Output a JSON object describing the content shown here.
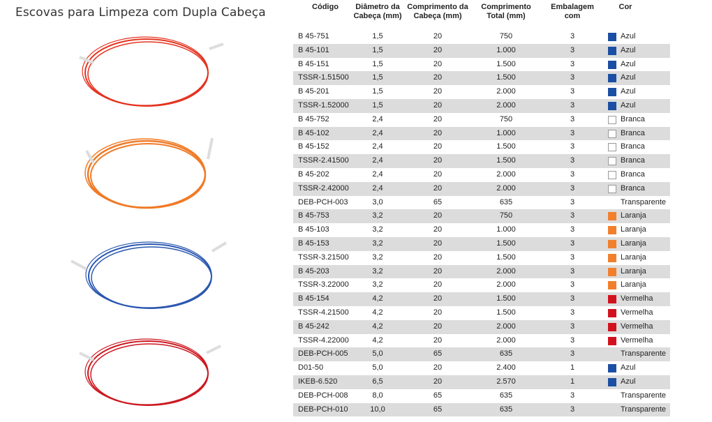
{
  "title": "Escovas para Limpeza com Dupla Cabeça",
  "table": {
    "headers": {
      "code": "Código",
      "diameter": [
        "Diâmetro da",
        "Cabeça (mm)"
      ],
      "head_length": [
        "Comprimento da",
        "Cabeça (mm)"
      ],
      "total_length": [
        "Comprimento",
        "Total (mm)"
      ],
      "package": [
        "Embalagem",
        "com"
      ],
      "color": "Cor"
    },
    "swatch_colors": {
      "Azul": "#1c4fa3",
      "Branca": "#ffffff",
      "Laranja": "#f27f2c",
      "Vermelha": "#d1121e"
    },
    "rows": [
      {
        "code": "B 45-751",
        "diameter": "1,5",
        "head": "20",
        "total": "750",
        "pack": "3",
        "color": "Azul"
      },
      {
        "code": "B 45-101",
        "diameter": "1,5",
        "head": "20",
        "total": "1.000",
        "pack": "3",
        "color": "Azul"
      },
      {
        "code": "B 45-151",
        "diameter": "1,5",
        "head": "20",
        "total": "1.500",
        "pack": "3",
        "color": "Azul"
      },
      {
        "code": "TSSR-1.51500",
        "diameter": "1,5",
        "head": "20",
        "total": "1.500",
        "pack": "3",
        "color": "Azul"
      },
      {
        "code": "B 45-201",
        "diameter": "1,5",
        "head": "20",
        "total": "2.000",
        "pack": "3",
        "color": "Azul"
      },
      {
        "code": "TSSR-1.52000",
        "diameter": "1,5",
        "head": "20",
        "total": "2.000",
        "pack": "3",
        "color": "Azul"
      },
      {
        "code": "B 45-752",
        "diameter": "2,4",
        "head": "20",
        "total": "750",
        "pack": "3",
        "color": "Branca"
      },
      {
        "code": "B 45-102",
        "diameter": "2,4",
        "head": "20",
        "total": "1.000",
        "pack": "3",
        "color": "Branca"
      },
      {
        "code": "B 45-152",
        "diameter": "2,4",
        "head": "20",
        "total": "1.500",
        "pack": "3",
        "color": "Branca"
      },
      {
        "code": "TSSR-2.41500",
        "diameter": "2,4",
        "head": "20",
        "total": "1.500",
        "pack": "3",
        "color": "Branca"
      },
      {
        "code": "B 45-202",
        "diameter": "2,4",
        "head": "20",
        "total": "2.000",
        "pack": "3",
        "color": "Branca"
      },
      {
        "code": "TSSR-2.42000",
        "diameter": "2,4",
        "head": "20",
        "total": "2.000",
        "pack": "3",
        "color": "Branca"
      },
      {
        "code": "DEB-PCH-003",
        "diameter": "3,0",
        "head": "65",
        "total": "635",
        "pack": "3",
        "color": "Transparente"
      },
      {
        "code": "B 45-753",
        "diameter": "3,2",
        "head": "20",
        "total": "750",
        "pack": "3",
        "color": "Laranja"
      },
      {
        "code": "B 45-103",
        "diameter": "3,2",
        "head": "20",
        "total": "1.000",
        "pack": "3",
        "color": "Laranja"
      },
      {
        "code": "B 45-153",
        "diameter": "3,2",
        "head": "20",
        "total": "1.500",
        "pack": "3",
        "color": "Laranja"
      },
      {
        "code": "TSSR-3.21500",
        "diameter": "3,2",
        "head": "20",
        "total": "1.500",
        "pack": "3",
        "color": "Laranja"
      },
      {
        "code": "B 45-203",
        "diameter": "3,2",
        "head": "20",
        "total": "2.000",
        "pack": "3",
        "color": "Laranja"
      },
      {
        "code": "TSSR-3.22000",
        "diameter": "3,2",
        "head": "20",
        "total": "2.000",
        "pack": "3",
        "color": "Laranja"
      },
      {
        "code": "B 45-154",
        "diameter": "4,2",
        "head": "20",
        "total": "1.500",
        "pack": "3",
        "color": "Vermelha"
      },
      {
        "code": "TSSR-4.21500",
        "diameter": "4,2",
        "head": "20",
        "total": "1.500",
        "pack": "3",
        "color": "Vermelha"
      },
      {
        "code": "B 45-242",
        "diameter": "4,2",
        "head": "20",
        "total": "2.000",
        "pack": "3",
        "color": "Vermelha"
      },
      {
        "code": "TSSR-4.22000",
        "diameter": "4,2",
        "head": "20",
        "total": "2.000",
        "pack": "3",
        "color": "Vermelha"
      },
      {
        "code": "DEB-PCH-005",
        "diameter": "5,0",
        "head": "65",
        "total": "635",
        "pack": "3",
        "color": "Transparente"
      },
      {
        "code": "D01-50",
        "diameter": "5,0",
        "head": "20",
        "total": "2.400",
        "pack": "1",
        "color": "Azul"
      },
      {
        "code": "IKEB-6.520",
        "diameter": "6,5",
        "head": "20",
        "total": "2.570",
        "pack": "1",
        "color": "Azul"
      },
      {
        "code": "DEB-PCH-008",
        "diameter": "8,0",
        "head": "65",
        "total": "635",
        "pack": "3",
        "color": "Transparente"
      },
      {
        "code": "DEB-PCH-010",
        "diameter": "10,0",
        "head": "65",
        "total": "635",
        "pack": "3",
        "color": "Transparente"
      }
    ]
  },
  "illustrations": [
    {
      "name": "red-brush-coil",
      "color": "#e5331f"
    },
    {
      "name": "orange-brush-coil",
      "color": "#f07a26"
    },
    {
      "name": "blue-brush-coil",
      "color": "#2a57b0"
    },
    {
      "name": "darkred-brush-coil",
      "color": "#cc1820"
    }
  ]
}
